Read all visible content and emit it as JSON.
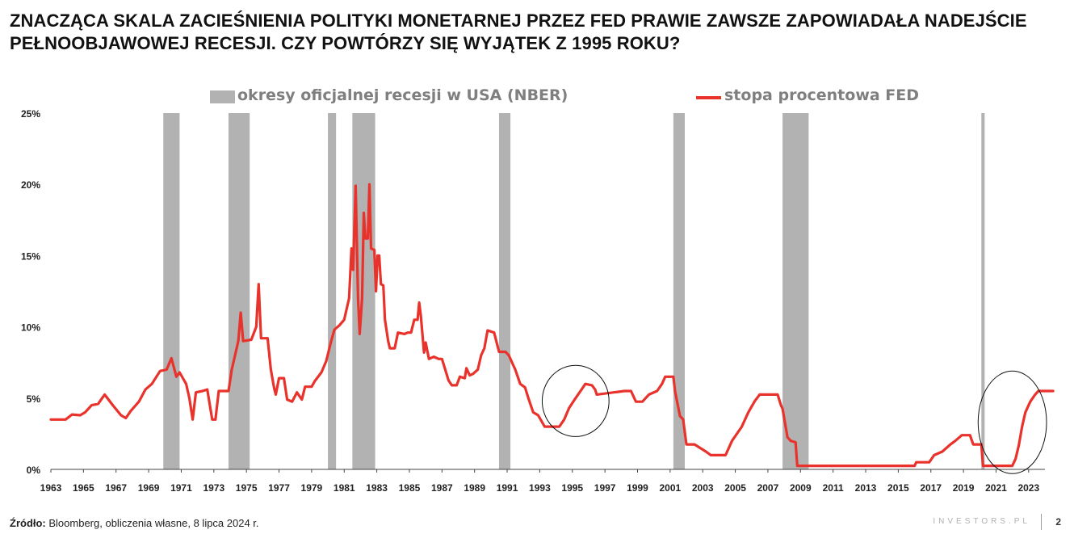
{
  "title": "ZNACZĄCA SKALA ZACIEŚNIENIA POLITYKI MONETARNEJ PRZEZ FED PRAWIE ZAWSZE ZAPOWIADAŁA NADEJŚCIE PEŁNOOBJAWOWEJ RECESJI. CZY POWTÓRZY SIĘ WYJĄTEK Z 1995 ROKU?",
  "legend": {
    "recession_label": "okresy oficjalnej recesji w USA (NBER)",
    "fed_label": "stopa procentowa FED"
  },
  "footer": {
    "source_label": "Źródło:",
    "source_text": " Bloomberg, obliczenia własne, 8 lipca 2024 r.",
    "brand": "INVESTORS.PL",
    "page": "2"
  },
  "colors": {
    "line": "#e8322b",
    "recession": "#b2b2b2",
    "axis": "#444444",
    "annotation": "#111111"
  },
  "chart_data": {
    "type": "line",
    "title": "",
    "xlabel": "",
    "ylabel": "",
    "xlim": [
      1963.0,
      2024.0
    ],
    "ylim": [
      0,
      25
    ],
    "grid": false,
    "legend_position": "top",
    "x_ticks": [
      1963,
      1965,
      1967,
      1969,
      1971,
      1973,
      1975,
      1977,
      1979,
      1981,
      1983,
      1985,
      1987,
      1989,
      1991,
      1993,
      1995,
      1997,
      1999,
      2001,
      2003,
      2005,
      2007,
      2009,
      2011,
      2013,
      2015,
      2017,
      2019,
      2021,
      2023
    ],
    "y_ticks": [
      {
        "value": 0,
        "label": "0%"
      },
      {
        "value": 5,
        "label": "5%"
      },
      {
        "value": 10,
        "label": "10%"
      },
      {
        "value": 15,
        "label": "15%"
      },
      {
        "value": 20,
        "label": "20%"
      },
      {
        "value": 25,
        "label": "25%"
      }
    ],
    "recessions": [
      [
        1969.9,
        1970.9
      ],
      [
        1973.9,
        1975.2
      ],
      [
        1980.0,
        1980.5
      ],
      [
        1981.5,
        1982.9
      ],
      [
        1990.5,
        1991.2
      ],
      [
        2001.2,
        2001.9
      ],
      [
        2007.9,
        2009.5
      ],
      [
        2020.1,
        2020.3
      ]
    ],
    "annotations": [
      {
        "type": "ellipse",
        "center": [
          1995.2,
          4.8
        ],
        "radius_years": 2.05,
        "radius_pct": 2.5
      },
      {
        "type": "ellipse",
        "center": [
          2022.0,
          3.3
        ],
        "radius_years": 2.1,
        "radius_pct": 3.6
      }
    ],
    "series": [
      {
        "name": "stopa procentowa FED",
        "points": [
          [
            1963.0,
            3.5
          ],
          [
            1963.9,
            3.5
          ],
          [
            1964.3,
            3.85
          ],
          [
            1964.8,
            3.8
          ],
          [
            1965.1,
            4.0
          ],
          [
            1965.5,
            4.5
          ],
          [
            1965.9,
            4.6
          ],
          [
            1966.3,
            5.25
          ],
          [
            1966.8,
            4.5
          ],
          [
            1967.3,
            3.8
          ],
          [
            1967.6,
            3.6
          ],
          [
            1967.9,
            4.1
          ],
          [
            1968.4,
            4.75
          ],
          [
            1968.8,
            5.6
          ],
          [
            1969.2,
            6.0
          ],
          [
            1969.7,
            6.9
          ],
          [
            1970.1,
            7.0
          ],
          [
            1970.4,
            7.8
          ],
          [
            1970.7,
            6.5
          ],
          [
            1970.9,
            6.8
          ],
          [
            1971.3,
            6.0
          ],
          [
            1971.5,
            5.0
          ],
          [
            1971.7,
            3.5
          ],
          [
            1971.9,
            5.4
          ],
          [
            1972.3,
            5.5
          ],
          [
            1972.6,
            5.6
          ],
          [
            1972.9,
            3.5
          ],
          [
            1973.1,
            3.5
          ],
          [
            1973.3,
            5.5
          ],
          [
            1973.9,
            5.5
          ],
          [
            1974.1,
            7.0
          ],
          [
            1974.5,
            9.0
          ],
          [
            1974.65,
            11.0
          ],
          [
            1974.8,
            9.0
          ],
          [
            1975.3,
            9.1
          ],
          [
            1975.6,
            10.0
          ],
          [
            1975.75,
            13.0
          ],
          [
            1975.9,
            9.2
          ],
          [
            1976.3,
            9.2
          ],
          [
            1976.5,
            7.0
          ],
          [
            1976.7,
            5.7
          ],
          [
            1976.8,
            5.25
          ],
          [
            1977.0,
            6.4
          ],
          [
            1977.3,
            6.4
          ],
          [
            1977.5,
            4.9
          ],
          [
            1977.8,
            4.75
          ],
          [
            1978.1,
            5.4
          ],
          [
            1978.4,
            4.9
          ],
          [
            1978.6,
            5.8
          ],
          [
            1979.0,
            5.8
          ],
          [
            1979.2,
            6.2
          ],
          [
            1979.6,
            6.8
          ],
          [
            1979.9,
            7.6
          ],
          [
            1980.2,
            9.0
          ],
          [
            1980.4,
            9.8
          ],
          [
            1980.7,
            10.1
          ],
          [
            1981.0,
            10.5
          ],
          [
            1981.3,
            12.0
          ],
          [
            1981.45,
            15.5
          ],
          [
            1981.55,
            14.0
          ],
          [
            1981.7,
            19.9
          ],
          [
            1981.85,
            12.0
          ],
          [
            1981.95,
            9.5
          ],
          [
            1982.1,
            12.0
          ],
          [
            1982.2,
            18.0
          ],
          [
            1982.3,
            16.2
          ],
          [
            1982.45,
            16.2
          ],
          [
            1982.55,
            20.0
          ],
          [
            1982.65,
            15.5
          ],
          [
            1982.85,
            15.4
          ],
          [
            1982.95,
            12.5
          ],
          [
            1983.05,
            15.0
          ],
          [
            1983.15,
            15.0
          ],
          [
            1983.25,
            13.0
          ],
          [
            1983.4,
            12.9
          ],
          [
            1983.5,
            10.5
          ],
          [
            1983.7,
            9.0
          ],
          [
            1983.8,
            8.5
          ],
          [
            1984.1,
            8.5
          ],
          [
            1984.3,
            9.6
          ],
          [
            1984.7,
            9.5
          ],
          [
            1984.9,
            9.6
          ],
          [
            1985.1,
            9.6
          ],
          [
            1985.3,
            10.5
          ],
          [
            1985.5,
            10.5
          ],
          [
            1985.6,
            11.7
          ],
          [
            1985.7,
            10.8
          ],
          [
            1985.9,
            8.2
          ],
          [
            1986.0,
            8.9
          ],
          [
            1986.2,
            7.75
          ],
          [
            1986.5,
            7.9
          ],
          [
            1986.8,
            7.75
          ],
          [
            1987.0,
            7.75
          ],
          [
            1987.2,
            7.0
          ],
          [
            1987.4,
            6.25
          ],
          [
            1987.6,
            5.9
          ],
          [
            1987.9,
            5.9
          ],
          [
            1988.1,
            6.5
          ],
          [
            1988.4,
            6.4
          ],
          [
            1988.5,
            7.1
          ],
          [
            1988.7,
            6.6
          ],
          [
            1988.9,
            6.7
          ],
          [
            1989.2,
            7.0
          ],
          [
            1989.4,
            8.0
          ],
          [
            1989.6,
            8.5
          ],
          [
            1989.8,
            9.75
          ],
          [
            1990.2,
            9.6
          ],
          [
            1990.5,
            8.25
          ],
          [
            1990.9,
            8.25
          ],
          [
            1991.1,
            8.0
          ],
          [
            1991.5,
            7.0
          ],
          [
            1991.8,
            6.0
          ],
          [
            1992.1,
            5.75
          ],
          [
            1992.3,
            5.0
          ],
          [
            1992.6,
            4.0
          ],
          [
            1992.9,
            3.8
          ],
          [
            1993.3,
            3.0
          ],
          [
            1994.2,
            3.0
          ],
          [
            1994.5,
            3.5
          ],
          [
            1994.8,
            4.3
          ],
          [
            1995.2,
            5.0
          ],
          [
            1995.5,
            5.5
          ],
          [
            1995.8,
            6.0
          ],
          [
            1996.2,
            5.9
          ],
          [
            1996.4,
            5.6
          ],
          [
            1996.5,
            5.25
          ],
          [
            1998.2,
            5.5
          ],
          [
            1998.6,
            5.5
          ],
          [
            1998.9,
            4.75
          ],
          [
            1999.3,
            4.75
          ],
          [
            1999.7,
            5.25
          ],
          [
            2000.2,
            5.5
          ],
          [
            2000.5,
            6.0
          ],
          [
            2000.7,
            6.5
          ],
          [
            2001.2,
            6.5
          ],
          [
            2001.3,
            5.5
          ],
          [
            2001.6,
            3.75
          ],
          [
            2001.8,
            3.5
          ],
          [
            2002.0,
            1.75
          ],
          [
            2002.5,
            1.75
          ],
          [
            2003.2,
            1.25
          ],
          [
            2003.5,
            1.0
          ],
          [
            2004.4,
            1.0
          ],
          [
            2004.8,
            2.0
          ],
          [
            2005.4,
            3.0
          ],
          [
            2005.8,
            4.0
          ],
          [
            2006.2,
            4.8
          ],
          [
            2006.5,
            5.25
          ],
          [
            2007.6,
            5.25
          ],
          [
            2007.8,
            4.5
          ],
          [
            2007.9,
            4.25
          ],
          [
            2008.2,
            2.25
          ],
          [
            2008.4,
            2.0
          ],
          [
            2008.7,
            1.9
          ],
          [
            2008.8,
            0.25
          ],
          [
            2016.0,
            0.25
          ],
          [
            2016.1,
            0.5
          ],
          [
            2016.9,
            0.5
          ],
          [
            2017.2,
            1.0
          ],
          [
            2017.7,
            1.25
          ],
          [
            2018.2,
            1.75
          ],
          [
            2018.5,
            2.0
          ],
          [
            2018.9,
            2.4
          ],
          [
            2019.4,
            2.4
          ],
          [
            2019.6,
            1.75
          ],
          [
            2020.1,
            1.75
          ],
          [
            2020.2,
            0.25
          ],
          [
            2022.0,
            0.25
          ],
          [
            2022.2,
            0.75
          ],
          [
            2022.4,
            1.7
          ],
          [
            2022.6,
            3.0
          ],
          [
            2022.8,
            4.0
          ],
          [
            2023.1,
            4.75
          ],
          [
            2023.4,
            5.25
          ],
          [
            2023.6,
            5.5
          ],
          [
            2024.5,
            5.5
          ]
        ]
      }
    ]
  }
}
